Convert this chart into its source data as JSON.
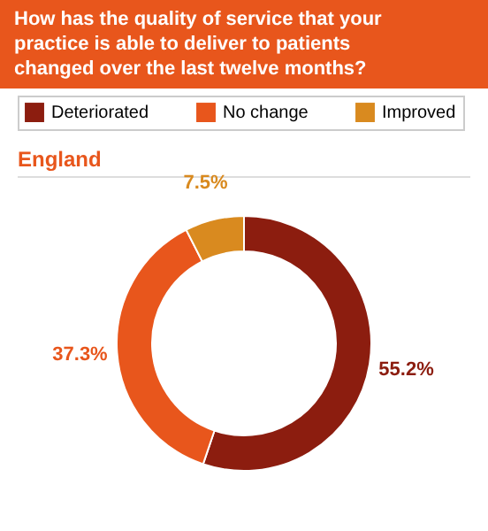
{
  "chart_data": {
    "type": "donut",
    "title": "How has the quality of service that your practice is able to deliver to patients changed over the last twelve months?",
    "subtitle": "England",
    "categories": [
      "Deteriorated",
      "No change",
      "Improved"
    ],
    "values": [
      55.2,
      37.3,
      7.5
    ],
    "colors": [
      "#8c1d0f",
      "#e8561c",
      "#d98a1f"
    ],
    "value_labels": [
      "55.2%",
      "37.3%",
      "7.5%"
    ],
    "legend": "top"
  }
}
